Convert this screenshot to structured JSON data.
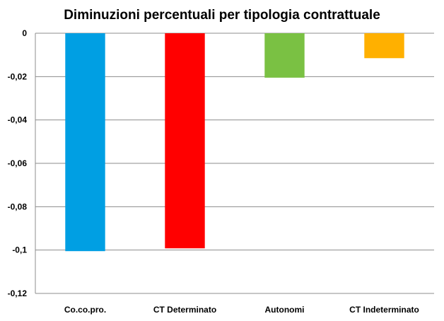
{
  "chart_data": {
    "type": "bar",
    "title": "Diminuzioni percentuali per tipologia contrattuale",
    "categories": [
      "Co.co.pro.",
      "CT Determinato",
      "Autonomi",
      "CT Indeterminato"
    ],
    "series": [
      {
        "values": [
          -0.1005,
          -0.0992,
          -0.0205,
          -0.0115
        ],
        "colors": [
          "#009fe3",
          "#ff0000",
          "#7ac143",
          "#ffb000"
        ]
      }
    ],
    "ylim": [
      -0.12,
      0
    ],
    "yticks": [
      0,
      -0.02,
      -0.04,
      -0.06,
      -0.08,
      -0.1,
      -0.12
    ],
    "ytick_labels": [
      "0",
      "-0,02",
      "-0,04",
      "-0,06",
      "-0,08",
      "-0,1",
      "-0,12"
    ],
    "grid": true,
    "legend": "none"
  }
}
